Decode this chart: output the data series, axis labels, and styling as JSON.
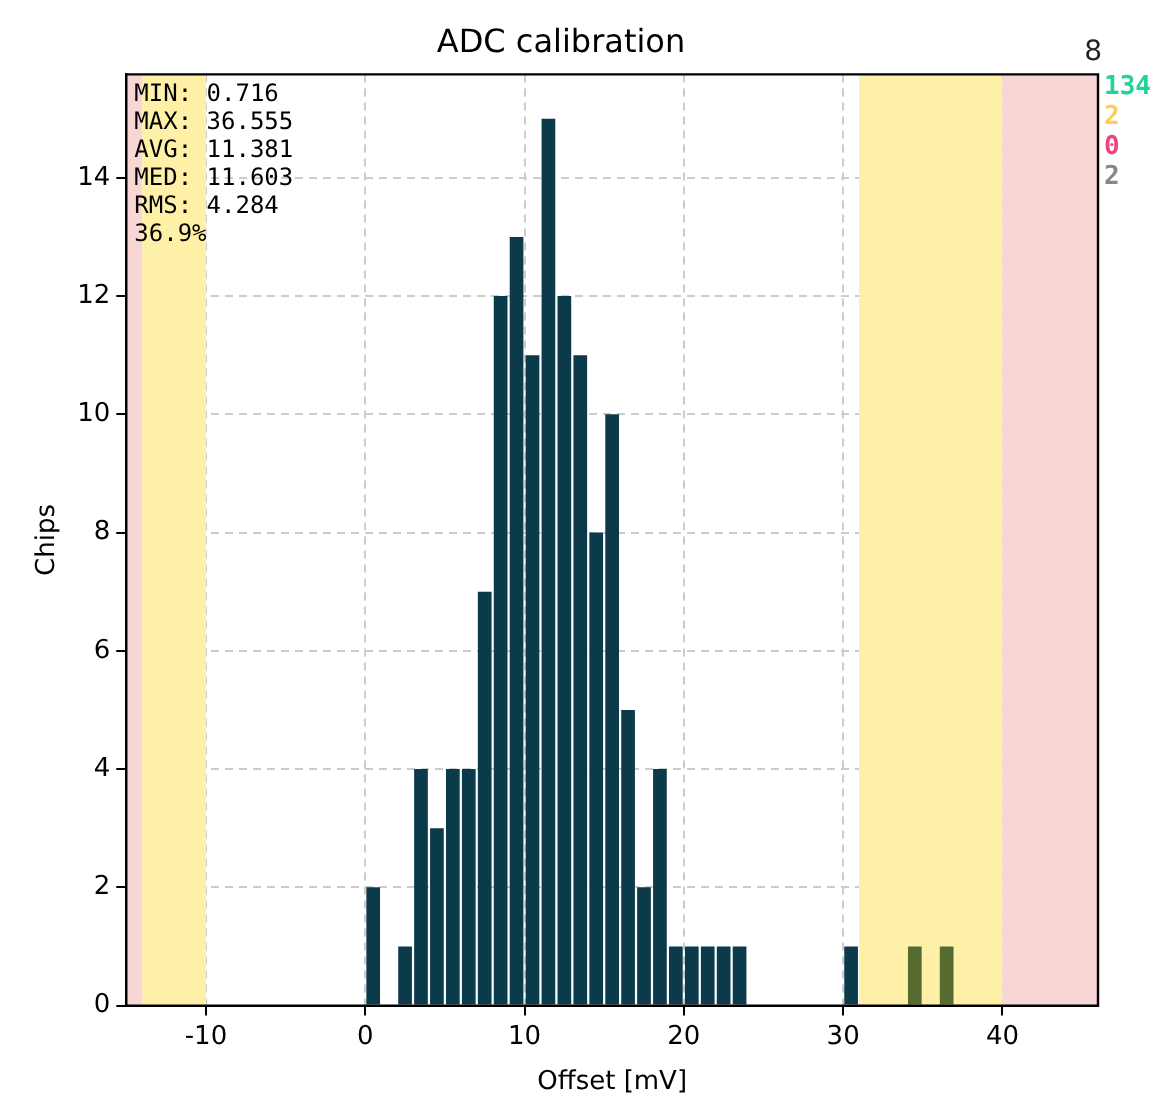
{
  "chart_data": {
    "type": "histogram",
    "title": "ADC calibration",
    "xlabel": "Offset [mV]",
    "ylabel": "Chips",
    "bins": [
      0,
      1,
      2,
      3,
      4,
      5,
      6,
      7,
      8,
      9,
      10,
      11,
      12,
      13,
      14,
      15,
      16,
      17,
      18,
      19,
      20,
      21,
      22,
      23,
      24,
      25,
      26,
      27,
      28,
      29,
      30,
      31,
      32,
      33,
      34,
      35,
      36,
      37
    ],
    "values": [
      2,
      0,
      1,
      4,
      3,
      4,
      4,
      7,
      12,
      13,
      11,
      15,
      12,
      11,
      8,
      10,
      5,
      2,
      4,
      1,
      1,
      1,
      1,
      1,
      0,
      0,
      0,
      0,
      0,
      0,
      1,
      0,
      0,
      0,
      1,
      0,
      1
    ],
    "colors": [
      "#0b3a4a",
      "#0b3a4a",
      "#0b3a4a",
      "#0b3a4a",
      "#0b3a4a",
      "#0b3a4a",
      "#0b3a4a",
      "#0b3a4a",
      "#0b3a4a",
      "#0b3a4a",
      "#0b3a4a",
      "#0b3a4a",
      "#0b3a4a",
      "#0b3a4a",
      "#0b3a4a",
      "#0b3a4a",
      "#0b3a4a",
      "#0b3a4a",
      "#0b3a4a",
      "#0b3a4a",
      "#0b3a4a",
      "#0b3a4a",
      "#0b3a4a",
      "#0b3a4a",
      "#0b3a4a",
      "#0b3a4a",
      "#0b3a4a",
      "#0b3a4a",
      "#0b3a4a",
      "#0b3a4a",
      "#0b3a4a",
      "#556b2f",
      "#556b2f",
      "#556b2f",
      "#556b2f",
      "#556b2f",
      "#556b2f"
    ],
    "xlim": [
      -15,
      46
    ],
    "xticks": [
      -10,
      0,
      10,
      20,
      30,
      40
    ],
    "ylim": [
      0,
      15.75
    ],
    "yticks": [
      0,
      2,
      4,
      6,
      8,
      10,
      12,
      14
    ],
    "grid": true,
    "legend": false,
    "bands": [
      {
        "axis": "x",
        "from": -15,
        "to": -14,
        "color": "#f9d6d6"
      },
      {
        "axis": "x",
        "from": -14,
        "to": -10,
        "color": "#fff0a8"
      },
      {
        "axis": "x",
        "from": 31,
        "to": 40,
        "color": "#fff0a8"
      },
      {
        "axis": "x",
        "from": 40,
        "to": 46,
        "color": "#f9d6d6"
      }
    ],
    "annotations": [
      "MIN: 0.716",
      "MAX: 36.555",
      "AVG: 11.381",
      "MED: 11.603",
      "RMS: 4.284",
      "36.9%",
      "8",
      "134",
      "2",
      "0",
      "2"
    ]
  }
}
